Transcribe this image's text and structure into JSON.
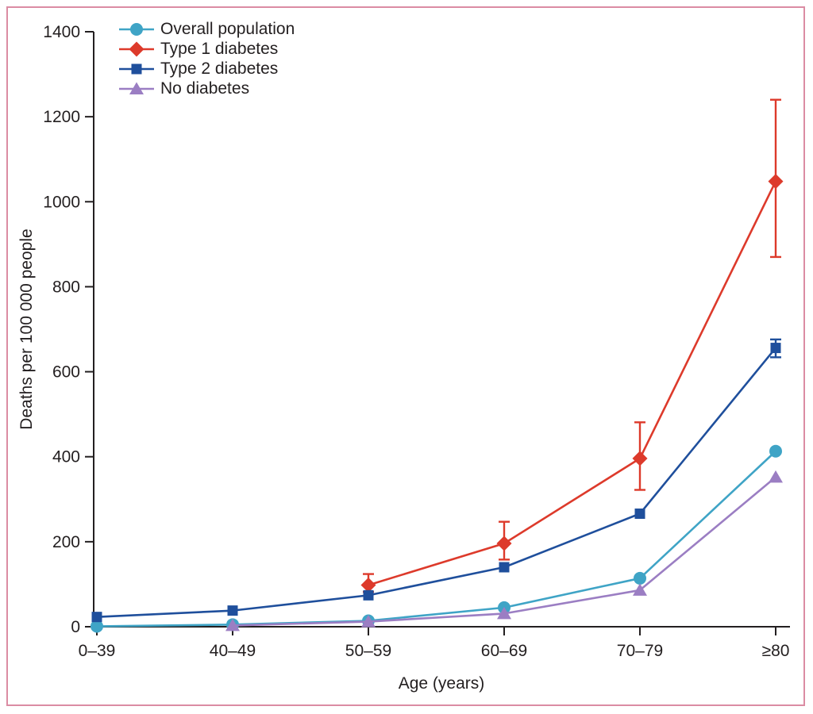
{
  "colors": {
    "frame_pink": "#db8ca3",
    "axis": "#231f20",
    "text": "#231f20"
  },
  "chart_data": {
    "type": "line",
    "title": "",
    "xlabel": "Age (years)",
    "ylabel": "Deaths per 100 000 people",
    "categories": [
      "0–39",
      "40–49",
      "50–59",
      "60–69",
      "70–79",
      "≥80"
    ],
    "ylim": [
      0,
      1400
    ],
    "yticks": [
      0,
      200,
      400,
      600,
      800,
      1000,
      1200,
      1400
    ],
    "grid": false,
    "legend_position": "top-left",
    "error_bars": "shown on Type 1 diabetes (50–59 to ≥80) and Type 2 diabetes (≥80)",
    "series": [
      {
        "name": "Overall population",
        "marker": "circle",
        "color": "#3fa4c6",
        "values": [
          1,
          5,
          14,
          45,
          114,
          413
        ],
        "error_low": [
          null,
          null,
          null,
          null,
          null,
          null
        ],
        "error_high": [
          null,
          null,
          null,
          null,
          null,
          null
        ]
      },
      {
        "name": "Type 1 diabetes",
        "marker": "diamond",
        "color": "#dd3a2b",
        "values": [
          null,
          null,
          98,
          196,
          396,
          1048
        ],
        "error_low": [
          null,
          null,
          82,
          158,
          322,
          870
        ],
        "error_high": [
          null,
          null,
          124,
          247,
          481,
          1240
        ]
      },
      {
        "name": "Type 2 diabetes",
        "marker": "square",
        "color": "#1f4f9c",
        "values": [
          23,
          38,
          74,
          140,
          266,
          656
        ],
        "error_low": [
          null,
          null,
          null,
          null,
          null,
          634
        ],
        "error_high": [
          null,
          null,
          null,
          null,
          null,
          676
        ]
      },
      {
        "name": "No diabetes",
        "marker": "triangle",
        "color": "#9b7ec3",
        "values": [
          null,
          3,
          12,
          31,
          86,
          352
        ],
        "error_low": [
          null,
          null,
          null,
          null,
          null,
          null
        ],
        "error_high": [
          null,
          null,
          null,
          null,
          null,
          null
        ]
      }
    ]
  }
}
